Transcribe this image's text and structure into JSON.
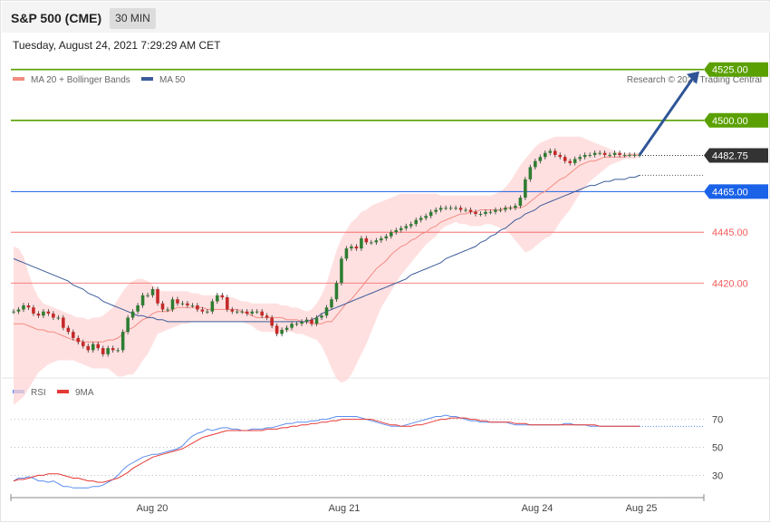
{
  "header": {
    "title": "S&P 500 (CME)",
    "interval": "30 MIN",
    "timestamp": "Tuesday, August 24, 2021 7:29:29 AM CET"
  },
  "colors": {
    "candle_up": "#2e7d32",
    "candle_down": "#c62828",
    "bollinger_fill": "#ffd6d6",
    "ma20": "#f28b82",
    "ma50": "#3b5b9a",
    "resistance": "#5aa000",
    "support_blue": "#1a62e8",
    "support_red": "#f25b5b",
    "current_price": "#333333",
    "arrow": "#2f5597",
    "rsi": "#5b8def",
    "rsi_ma": "#e53935"
  },
  "chart_data": [
    {
      "type": "candlestick",
      "legend": [
        "MA 20 + Bollinger Bands",
        "MA 50"
      ],
      "credit": "Research © 2021 Trading Central",
      "ylim": [
        4376,
        4532
      ],
      "levels": [
        {
          "value": 4525,
          "label": "4525.00",
          "kind": "resistance"
        },
        {
          "value": 4500,
          "label": "4500.00",
          "kind": "resistance"
        },
        {
          "value": 4482.75,
          "label": "4482.75",
          "kind": "current"
        },
        {
          "value": 4465,
          "label": "4465.00",
          "kind": "support_blue"
        },
        {
          "value": 4445,
          "label": "4445.00",
          "kind": "support_red"
        },
        {
          "value": 4420,
          "label": "4420.00",
          "kind": "support_red"
        }
      ],
      "x_ticks": [
        "Aug 20",
        "Aug 21",
        "Aug 24",
        "Aug 25"
      ],
      "close": [
        4406,
        4407,
        4409,
        4408,
        4405,
        4404,
        4406,
        4405,
        4403,
        4403,
        4398,
        4396,
        4393,
        4391,
        4389,
        4387,
        4390,
        4388,
        4385,
        4388,
        4387,
        4387,
        4396,
        4403,
        4406,
        4409,
        4414,
        4414,
        4417,
        4410,
        4407,
        4407,
        4412,
        4410,
        4410,
        4409,
        4409,
        4407,
        4406,
        4406,
        4411,
        4414,
        4413,
        4407,
        4406,
        4406,
        4406,
        4405,
        4406,
        4406,
        4404,
        4403,
        4399,
        4395,
        4397,
        4398,
        4400,
        4400,
        4401,
        4402,
        4400,
        4403,
        4404,
        4408,
        4412,
        4420,
        4432,
        4437,
        4438,
        4437,
        4442,
        4440,
        4440,
        4441,
        4442,
        4443,
        4445,
        4446,
        4447,
        4448,
        4449,
        4451,
        4452,
        4453,
        4455,
        4456,
        4457,
        4457,
        4457,
        4457,
        4456,
        4456,
        4455,
        4454,
        4454,
        4455,
        4455,
        4456,
        4456,
        4457,
        4457,
        4458,
        4462,
        4471,
        4477,
        4480,
        4482,
        4484,
        4485,
        4483,
        4482,
        4480,
        4479,
        4481,
        4482,
        4483,
        4483,
        4484,
        4484,
        4483,
        4483,
        4484,
        4483,
        4483,
        4483,
        4483,
        4483
      ],
      "ma20": [
        4400,
        4400,
        4400,
        4399,
        4398,
        4397,
        4397,
        4396,
        4396,
        4395,
        4394,
        4393,
        4392,
        4392,
        4391,
        4391,
        4391,
        4391,
        4391,
        4392,
        4392,
        4393,
        4395,
        4397,
        4398,
        4400,
        4402,
        4403,
        4405,
        4406,
        4406,
        4406,
        4407,
        4408,
        4408,
        4408,
        4408,
        4408,
        4408,
        4407,
        4407,
        4407,
        4407,
        4407,
        4407,
        4407,
        4406,
        4405,
        4404,
        4403,
        4403,
        4403,
        4403,
        4403,
        4403,
        4402,
        4402,
        4402,
        4401,
        4401,
        4400,
        4400,
        4400,
        4401,
        4401,
        4404,
        4407,
        4410,
        4412,
        4415,
        4418,
        4421,
        4424,
        4427,
        4429,
        4431,
        4434,
        4436,
        4438,
        4439,
        4441,
        4442,
        4444,
        4445,
        4447,
        4448,
        4450,
        4451,
        4452,
        4453,
        4454,
        4454,
        4455,
        4455,
        4456,
        4456,
        4456,
        4456,
        4456,
        4457,
        4457,
        4457,
        4457,
        4458,
        4460,
        4462,
        4464,
        4465,
        4467,
        4469,
        4471,
        4472,
        4474,
        4476,
        4478,
        4479,
        4480,
        4480,
        4481,
        4482,
        4482,
        4482,
        4482,
        4482,
        4483,
        4483,
        4483
      ],
      "bb_upper": [
        4438,
        4437,
        4433,
        4425,
        4418,
        4413,
        4410,
        4409,
        4408,
        4407,
        4406,
        4405,
        4404,
        4403,
        4403,
        4402,
        4403,
        4403,
        4404,
        4406,
        4408,
        4412,
        4416,
        4419,
        4421,
        4422,
        4422,
        4421,
        4419,
        4417,
        4416,
        4416,
        4416,
        4416,
        4416,
        4416,
        4415,
        4415,
        4414,
        4414,
        4414,
        4414,
        4414,
        4413,
        4413,
        4412,
        4411,
        4411,
        4410,
        4410,
        4410,
        4410,
        4410,
        4410,
        4409,
        4409,
        4408,
        4408,
        4407,
        4406,
        4407,
        4410,
        4414,
        4420,
        4428,
        4436,
        4442,
        4446,
        4450,
        4452,
        4455,
        4456,
        4458,
        4459,
        4460,
        4461,
        4462,
        4463,
        4464,
        4464,
        4464,
        4464,
        4464,
        4464,
        4464,
        4464,
        4463,
        4463,
        4463,
        4463,
        4463,
        4463,
        4463,
        4463,
        4463,
        4463,
        4463,
        4464,
        4465,
        4467,
        4470,
        4474,
        4478,
        4481,
        4484,
        4487,
        4489,
        4490,
        4491,
        4492,
        4492,
        4492,
        4492,
        4492,
        4492,
        4491,
        4490,
        4489,
        4488,
        4487,
        4486,
        4485,
        4484,
        4484,
        4484,
        4484,
        4484
      ],
      "bb_lower": [
        4360,
        4362,
        4364,
        4368,
        4372,
        4376,
        4378,
        4380,
        4381,
        4382,
        4382,
        4382,
        4382,
        4381,
        4380,
        4379,
        4378,
        4378,
        4378,
        4378,
        4376,
        4374,
        4374,
        4375,
        4375,
        4378,
        4382,
        4385,
        4390,
        4395,
        4396,
        4397,
        4398,
        4399,
        4400,
        4400,
        4401,
        4401,
        4401,
        4401,
        4401,
        4401,
        4401,
        4401,
        4401,
        4401,
        4401,
        4400,
        4399,
        4397,
        4396,
        4396,
        4396,
        4396,
        4396,
        4396,
        4396,
        4395,
        4395,
        4394,
        4393,
        4392,
        4389,
        4384,
        4378,
        4373,
        4371,
        4372,
        4375,
        4380,
        4385,
        4390,
        4396,
        4402,
        4408,
        4412,
        4416,
        4420,
        4424,
        4427,
        4430,
        4433,
        4436,
        4439,
        4441,
        4443,
        4446,
        4448,
        4449,
        4450,
        4449,
        4449,
        4448,
        4448,
        4448,
        4449,
        4449,
        4448,
        4447,
        4446,
        4444,
        4441,
        4438,
        4435,
        4436,
        4438,
        4440,
        4442,
        4443,
        4446,
        4450,
        4453,
        4456,
        4460,
        4464,
        4467,
        4470,
        4472,
        4474,
        4476,
        4478,
        4479,
        4480,
        4481,
        4481,
        4481,
        4482
      ],
      "ma50": [
        4432,
        4431,
        4430,
        4429,
        4428,
        4427,
        4426,
        4425,
        4424,
        4423,
        4422,
        4421,
        4419,
        4418,
        4417,
        4415,
        4414,
        4413,
        4411,
        4410,
        4409,
        4408,
        4407,
        4406,
        4405,
        4404,
        4404,
        4403,
        4403,
        4402,
        4402,
        4401,
        4401,
        4401,
        4401,
        4401,
        4401,
        4401,
        4401,
        4401,
        4401,
        4401,
        4401,
        4401,
        4401,
        4401,
        4401,
        4401,
        4401,
        4401,
        4401,
        4401,
        4401,
        4401,
        4401,
        4401,
        4401,
        4401,
        4401,
        4401,
        4402,
        4403,
        4405,
        4406,
        4407,
        4408,
        4409,
        4410,
        4411,
        4412,
        4413,
        4414,
        4415,
        4416,
        4417,
        4418,
        4419,
        4420,
        4421,
        4422,
        4424,
        4425,
        4426,
        4427,
        4428,
        4429,
        4430,
        4432,
        4433,
        4434,
        4435,
        4436,
        4437,
        4438,
        4440,
        4441,
        4443,
        4444,
        4446,
        4447,
        4449,
        4451,
        4452,
        4454,
        4455,
        4456,
        4458,
        4459,
        4460,
        4461,
        4462,
        4463,
        4464,
        4465,
        4466,
        4467,
        4468,
        4468,
        4469,
        4470,
        4470,
        4471,
        4471,
        4471,
        4472,
        4472,
        4473
      ]
    },
    {
      "type": "line",
      "legend": [
        "RSI",
        "9MA"
      ],
      "ylim": [
        16,
        84
      ],
      "y_ticks": [
        30,
        50,
        70
      ],
      "rsi": [
        26,
        28,
        28,
        29,
        28,
        26,
        26,
        25,
        26,
        24,
        22,
        22,
        21,
        21,
        21,
        21,
        22,
        22,
        23,
        25,
        27,
        30,
        34,
        37,
        39,
        41,
        43,
        44,
        45,
        45,
        46,
        47,
        48,
        49,
        51,
        55,
        58,
        60,
        61,
        63,
        62,
        63,
        64,
        64,
        63,
        63,
        62,
        62,
        63,
        63,
        63,
        64,
        64,
        65,
        66,
        67,
        67,
        68,
        68,
        68,
        69,
        69,
        70,
        70,
        71,
        72,
        72,
        72,
        72,
        72,
        71,
        70,
        69,
        68,
        67,
        66,
        65,
        65,
        65,
        66,
        67,
        68,
        69,
        70,
        71,
        72,
        72,
        73,
        72,
        72,
        71,
        70,
        69,
        69,
        68,
        68,
        68,
        68,
        68,
        68,
        67,
        66,
        66,
        66,
        66,
        66,
        66,
        66,
        66,
        66,
        66,
        67,
        67,
        66,
        66,
        66,
        65,
        65,
        65,
        65,
        65,
        65,
        65,
        65,
        65,
        65,
        65
      ],
      "rsi_ma": [
        26,
        27,
        27,
        28,
        29,
        30,
        30,
        31,
        31,
        31,
        30,
        29,
        28,
        28,
        27,
        26,
        26,
        25,
        25,
        26,
        27,
        28,
        30,
        32,
        35,
        37,
        39,
        41,
        43,
        44,
        45,
        46,
        47,
        48,
        49,
        51,
        53,
        55,
        57,
        58,
        59,
        60,
        61,
        62,
        62,
        62,
        62,
        62,
        62,
        62,
        62,
        63,
        63,
        63,
        64,
        64,
        65,
        65,
        66,
        66,
        67,
        67,
        68,
        68,
        69,
        69,
        70,
        70,
        70,
        70,
        70,
        70,
        70,
        69,
        68,
        67,
        66,
        66,
        65,
        65,
        65,
        66,
        66,
        67,
        68,
        69,
        70,
        70,
        71,
        71,
        71,
        71,
        70,
        70,
        69,
        69,
        68,
        68,
        68,
        68,
        68,
        67,
        67,
        67,
        66,
        66,
        66,
        66,
        66,
        66,
        66,
        66,
        66,
        66,
        66,
        66,
        66,
        66,
        65,
        65,
        65,
        65,
        65,
        65,
        65,
        65,
        65
      ]
    }
  ]
}
